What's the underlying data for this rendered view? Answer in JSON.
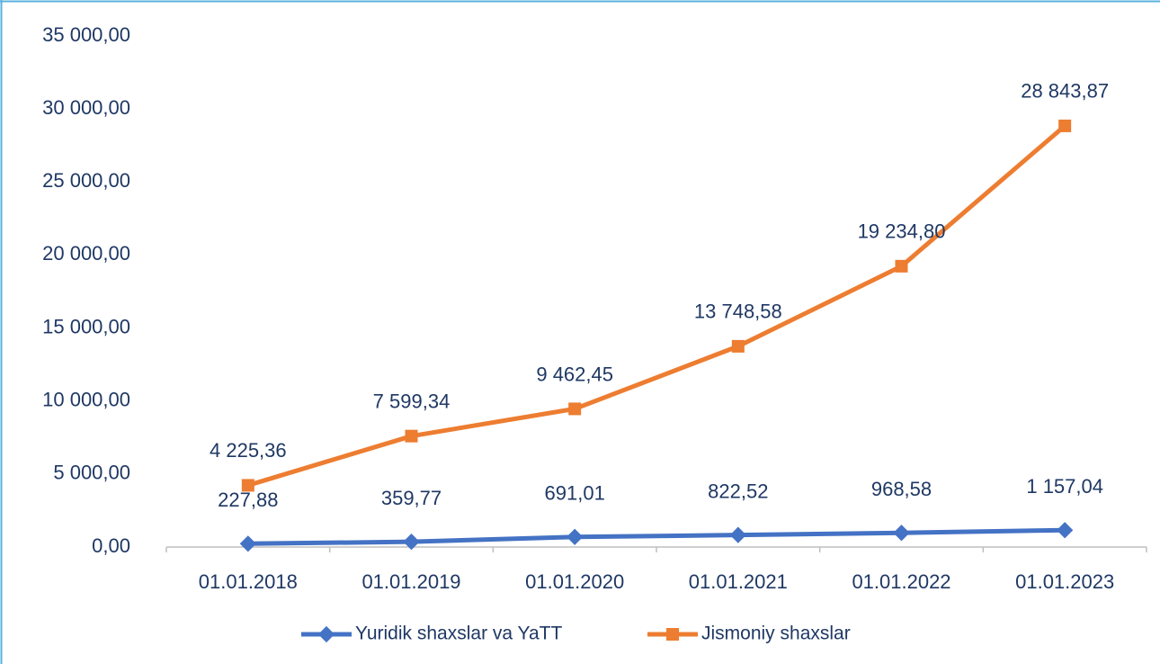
{
  "chart_data": {
    "type": "line",
    "categories": [
      "01.01.2018",
      "01.01.2019",
      "01.01.2020",
      "01.01.2021",
      "01.01.2022",
      "01.01.2023"
    ],
    "series": [
      {
        "name": "Yuridik shaxslar va YaTT",
        "color": "#4472c4",
        "marker": "diamond",
        "values": [
          227.88,
          359.77,
          691.01,
          822.52,
          968.58,
          1157.04
        ],
        "value_labels": [
          "227,88",
          "359,77",
          "691,01",
          "822,52",
          "968,58",
          "1 157,04"
        ]
      },
      {
        "name": "Jismoniy shaxslar",
        "color": "#ed7d31",
        "marker": "square",
        "values": [
          4225.36,
          7599.34,
          9462.45,
          13748.58,
          19234.8,
          28843.87
        ],
        "value_labels": [
          "4 225,36",
          "7 599,34",
          "9 462,45",
          "13 748,58",
          "19 234,80",
          "28 843,87"
        ]
      }
    ],
    "ylim": [
      0,
      35000
    ],
    "yticks": [
      {
        "value": 0,
        "label": "0,00"
      },
      {
        "value": 5000,
        "label": "5 000,00"
      },
      {
        "value": 10000,
        "label": "10 000,00"
      },
      {
        "value": 15000,
        "label": "15 000,00"
      },
      {
        "value": 20000,
        "label": "20 000,00"
      },
      {
        "value": 25000,
        "label": "25 000,00"
      },
      {
        "value": 30000,
        "label": "30 000,00"
      },
      {
        "value": 35000,
        "label": "35 000,00"
      }
    ],
    "grid": false,
    "legend": "bottom"
  }
}
